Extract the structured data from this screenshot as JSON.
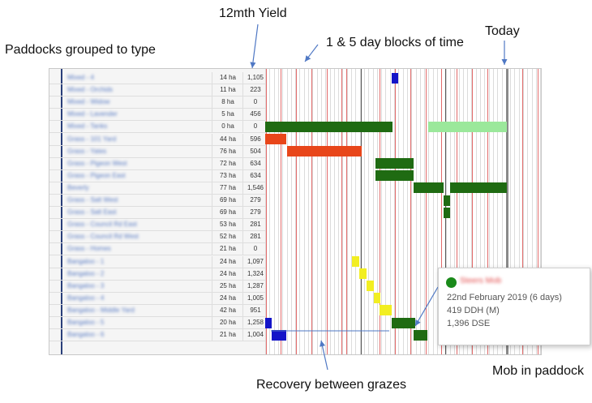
{
  "callouts": {
    "yield": "12mth Yield",
    "blocks": "1 & 5 day blocks of time",
    "today": "Today",
    "paddocks": "Paddocks grouped to type",
    "recovery": "Recovery between grazes",
    "mob": "Mob in paddock"
  },
  "rows": [
    {
      "name": "Mixed - 4",
      "area": "14 ha",
      "yield": "1,105"
    },
    {
      "name": "Mixed - Orchids",
      "area": "11 ha",
      "yield": "223"
    },
    {
      "name": "Mixed - Widow",
      "area": "8 ha",
      "yield": "0"
    },
    {
      "name": "Mixed - Lavender",
      "area": "5 ha",
      "yield": "456"
    },
    {
      "name": "Mixed - Tanks",
      "area": "0 ha",
      "yield": "0"
    },
    {
      "name": "Grass - 101 Yard",
      "area": "44 ha",
      "yield": "596"
    },
    {
      "name": "Grass - Yates",
      "area": "76 ha",
      "yield": "504"
    },
    {
      "name": "Grass - Pigeon West",
      "area": "72 ha",
      "yield": "634"
    },
    {
      "name": "Grass - Pigeon East",
      "area": "73 ha",
      "yield": "634"
    },
    {
      "name": "Beverly",
      "area": "77 ha",
      "yield": "1,546"
    },
    {
      "name": "Grass - Salt West",
      "area": "69 ha",
      "yield": "279"
    },
    {
      "name": "Grass - Salt East",
      "area": "69 ha",
      "yield": "279"
    },
    {
      "name": "Grass - Council Rd East",
      "area": "53 ha",
      "yield": "281"
    },
    {
      "name": "Grass - Council Rd West",
      "area": "52 ha",
      "yield": "281"
    },
    {
      "name": "Grass - Homes",
      "area": "21 ha",
      "yield": "0"
    },
    {
      "name": "Bangaloo - 1",
      "area": "24 ha",
      "yield": "1,097"
    },
    {
      "name": "Bangaloo - 2",
      "area": "24 ha",
      "yield": "1,324"
    },
    {
      "name": "Bangaloo - 3",
      "area": "25 ha",
      "yield": "1,287"
    },
    {
      "name": "Bangaloo - 4",
      "area": "24 ha",
      "yield": "1,005"
    },
    {
      "name": "Bangaloo - Middle Yard",
      "area": "42 ha",
      "yield": "951"
    },
    {
      "name": "Bangaloo - 5",
      "area": "20 ha",
      "yield": "1,258"
    },
    {
      "name": "Bangaloo - 6",
      "area": "21 ha",
      "yield": "1,004"
    }
  ],
  "colors": {
    "dark_green": "#1f6b12",
    "light_green": "#9be89b",
    "orange_red": "#e8461a",
    "yellow": "#f2ee22",
    "blue": "#1414c8",
    "grid_red": "#e26b6b"
  },
  "tooltip": {
    "mob_name": "Steers Mob",
    "date": "22nd February 2019 (6 days)",
    "ddh": "419 DDH (M)",
    "dse": "1,396 DSE"
  }
}
